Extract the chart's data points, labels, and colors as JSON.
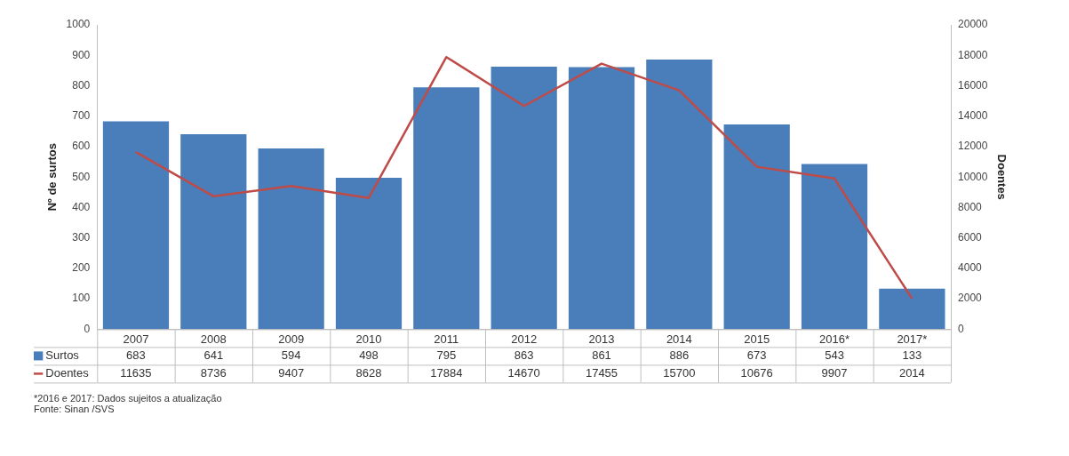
{
  "chart_data": {
    "type": "bar",
    "categories": [
      "2007",
      "2008",
      "2009",
      "2010",
      "2011",
      "2012",
      "2013",
      "2014",
      "2015",
      "2016*",
      "2017*"
    ],
    "series": [
      {
        "name": "Surtos",
        "color": "#4a7ebb",
        "values": [
          683,
          641,
          594,
          498,
          795,
          863,
          861,
          886,
          673,
          543,
          133
        ]
      },
      {
        "name": "Doentes",
        "type": "line",
        "axis": "y2",
        "color": "#be4b48",
        "values": [
          11635,
          8736,
          9407,
          8628,
          17884,
          14670,
          17455,
          15700,
          10676,
          9907,
          2014
        ]
      }
    ],
    "ylabel": "Nº de surtos",
    "y2label": "Doentes",
    "ylim": [
      0,
      1000
    ],
    "yticks": [
      0,
      100,
      200,
      300,
      400,
      500,
      600,
      700,
      800,
      900,
      1000
    ],
    "y2lim": [
      0,
      20000
    ],
    "y2ticks": [
      0,
      2000,
      4000,
      6000,
      8000,
      10000,
      12000,
      14000,
      16000,
      18000,
      20000
    ],
    "grid": false,
    "legend": "bottom",
    "data_labels": true,
    "marker": "none",
    "annotations": [
      "*2016 e 2017: Dados sujeitos a atualização",
      "Fonte: Sinan /SVS"
    ]
  }
}
